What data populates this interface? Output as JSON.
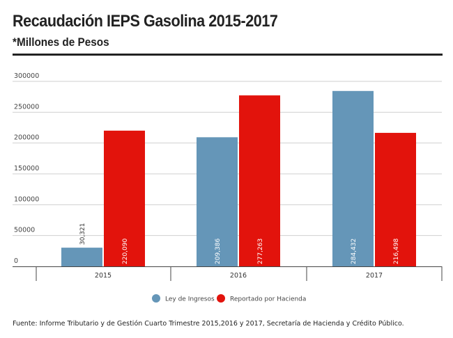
{
  "header": {
    "title": "Recaudación IEPS Gasolina 2015-2017",
    "subtitle": "*Millones de Pesos"
  },
  "footer": {
    "source": "Fuente: Informe Tributario y de Gestión Cuarto Trimestre 2015,2016 y 2017, Secretaría de Hacienda y Crédito Público."
  },
  "colors": {
    "ley": "#6596b8",
    "hacienda": "#e2130c",
    "grid": "#cfcfcf",
    "axis": "#444444"
  },
  "chart_data": {
    "type": "bar",
    "categories": [
      "2015",
      "2016",
      "2017"
    ],
    "series": [
      {
        "name": "Ley de Ingresos",
        "values": [
          30321,
          209386,
          284432
        ],
        "labels": [
          "30,321",
          "209,386",
          "284,432"
        ]
      },
      {
        "name": "Reportado por Hacienda",
        "values": [
          220090,
          277263,
          216498
        ],
        "labels": [
          "220,090",
          "277,263",
          "216,498"
        ]
      }
    ],
    "ylim": [
      0,
      300000
    ],
    "yticks": [
      0,
      50000,
      100000,
      150000,
      200000,
      250000,
      300000
    ],
    "ytick_labels": [
      "0",
      "50000",
      "100000",
      "150000",
      "200000",
      "250000",
      "300000"
    ],
    "grid": true,
    "legend": "bottom-center"
  }
}
